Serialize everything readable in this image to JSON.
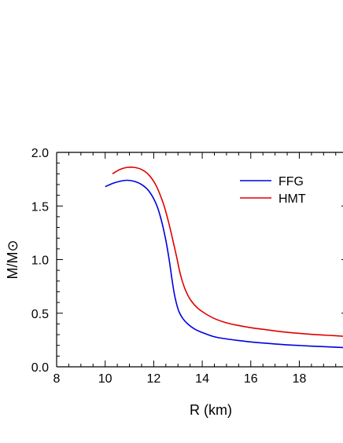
{
  "chart_data": {
    "type": "line",
    "xlabel": "R (km)",
    "ylabel": "M/M⊙",
    "xlim": [
      8,
      19.8
    ],
    "ylim": [
      0.0,
      2.0
    ],
    "xticks": [
      "8",
      "10",
      "12",
      "14",
      "16",
      "18"
    ],
    "yticks": [
      "0.0",
      "0.5",
      "1.0",
      "1.5",
      "2.0"
    ],
    "legend_position": "top-right",
    "grid": false,
    "series": [
      {
        "name": "FFG",
        "color": "#0000e0",
        "x": [
          10.0,
          10.3,
          10.6,
          10.9,
          11.2,
          11.5,
          11.8,
          12.1,
          12.3,
          12.5,
          12.65,
          12.75,
          12.85,
          12.95,
          13.05,
          13.2,
          13.4,
          13.7,
          14.0,
          14.5,
          15.0,
          15.5,
          16.0,
          16.5,
          17.0,
          17.5,
          18.0,
          18.5,
          19.0,
          19.5,
          19.8
        ],
        "y": [
          1.68,
          1.71,
          1.73,
          1.74,
          1.73,
          1.7,
          1.64,
          1.52,
          1.38,
          1.18,
          0.98,
          0.82,
          0.68,
          0.58,
          0.51,
          0.45,
          0.4,
          0.35,
          0.32,
          0.28,
          0.26,
          0.245,
          0.232,
          0.222,
          0.213,
          0.205,
          0.199,
          0.193,
          0.188,
          0.183,
          0.18
        ]
      },
      {
        "name": "HMT",
        "color": "#e00000",
        "x": [
          10.3,
          10.6,
          10.9,
          11.2,
          11.5,
          11.8,
          12.1,
          12.4,
          12.6,
          12.8,
          12.95,
          13.05,
          13.15,
          13.3,
          13.5,
          13.8,
          14.1,
          14.5,
          15.0,
          15.5,
          16.0,
          16.5,
          17.0,
          17.5,
          18.0,
          18.5,
          19.0,
          19.5,
          19.8
        ],
        "y": [
          1.8,
          1.84,
          1.86,
          1.86,
          1.84,
          1.79,
          1.69,
          1.52,
          1.36,
          1.17,
          1.02,
          0.91,
          0.82,
          0.72,
          0.63,
          0.55,
          0.5,
          0.45,
          0.41,
          0.385,
          0.365,
          0.35,
          0.335,
          0.322,
          0.312,
          0.303,
          0.296,
          0.29,
          0.285
        ]
      }
    ]
  }
}
